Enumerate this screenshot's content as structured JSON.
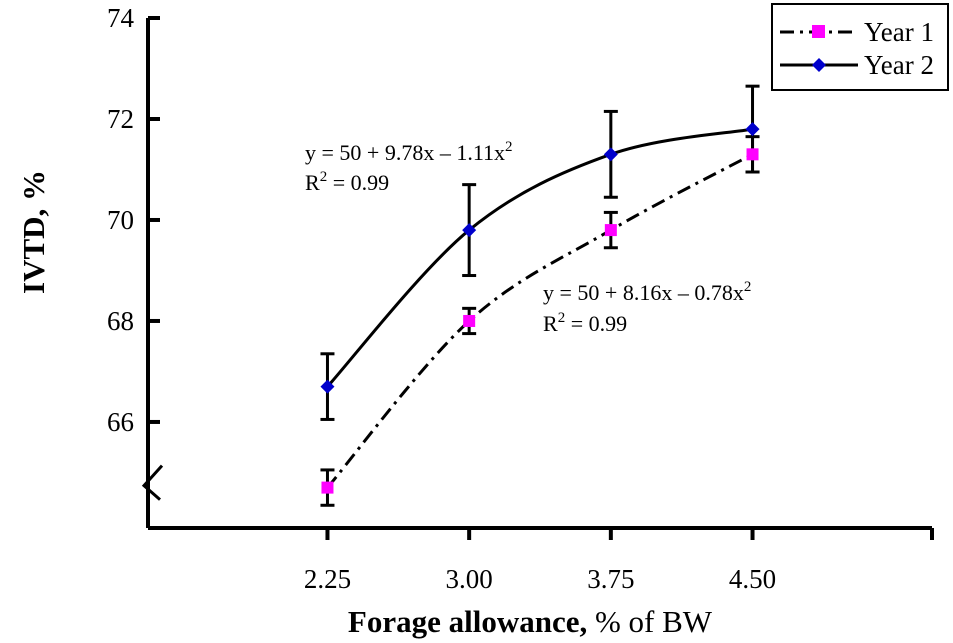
{
  "chart_data": {
    "type": "line",
    "title": "",
    "xlabel": "Forage allowance,",
    "xlabel_unit": " % of BW",
    "ylabel": "IVTD, %",
    "x_categories": [
      "2.25",
      "3.00",
      "3.75",
      "4.50"
    ],
    "x_values": [
      2.25,
      3.0,
      3.75,
      4.5
    ],
    "xlim": [
      1.3,
      5.45
    ],
    "ylim": [
      63.9,
      74
    ],
    "y_ticks": [
      66,
      68,
      70,
      72,
      74
    ],
    "y_tick_labels": [
      "66",
      "68",
      "70",
      "72",
      "74"
    ],
    "y_axis_break": true,
    "grid": false,
    "legend_position": "top-right",
    "series": [
      {
        "name": "Year 1",
        "style": "dash-dot",
        "marker": "square",
        "marker_color": "#ff00ff",
        "line_color": "#000000",
        "values": [
          64.7,
          68.0,
          69.8,
          71.3
        ],
        "error": [
          0.35,
          0.25,
          0.35,
          0.35
        ],
        "fit": {
          "a": 50,
          "b": 8.16,
          "c": -0.78
        },
        "equation_line1": "y = 50 + 8.16x – 0.78x",
        "equation_sup": "2",
        "r2_prefix": "R",
        "r2_sup": "2",
        "r2_suffix": " = 0.99"
      },
      {
        "name": "Year 2",
        "style": "solid",
        "marker": "diamond",
        "marker_color": "#0000cc",
        "line_color": "#000000",
        "values": [
          66.7,
          69.8,
          71.3,
          71.8
        ],
        "error": [
          0.65,
          0.9,
          0.85,
          0.85
        ],
        "fit": {
          "a": 50,
          "b": 9.78,
          "c": -1.11
        },
        "equation_line1": "y = 50 + 9.78x – 1.11x",
        "equation_sup": "2",
        "r2_prefix": "R",
        "r2_sup": "2",
        "r2_suffix": " = 0.99"
      }
    ]
  }
}
